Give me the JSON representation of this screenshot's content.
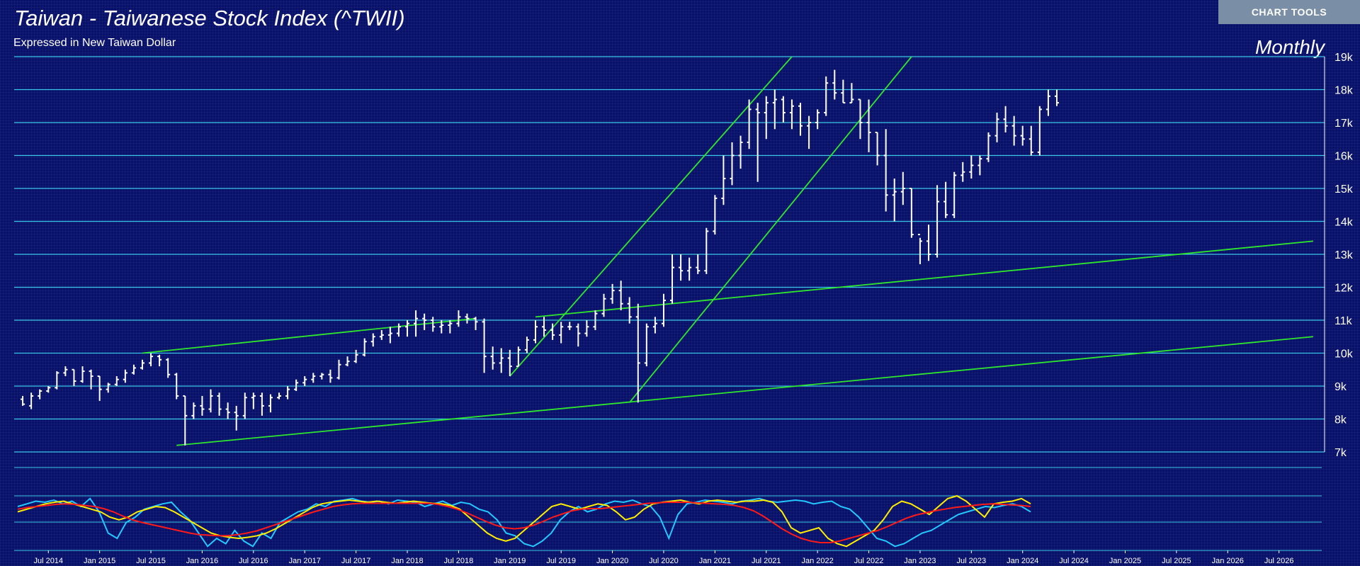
{
  "header": {
    "title": "Taiwan - Taiwanese Stock Index (^TWII)",
    "subtitle": "Expressed in New Taiwan Dollar",
    "period": "Monthly",
    "chart_tools_label": "CHART TOOLS"
  },
  "colors": {
    "background": "#07106a",
    "price_bars": "#ffffff",
    "trendlines": "#2ee62e",
    "gridlines": "#39c6e6",
    "osc_cyan": "#24c8ff",
    "osc_yellow": "#ffee00",
    "osc_red": "#ff1a1a"
  },
  "chart_data": {
    "type": "ohlc",
    "period": "monthly",
    "y_axis": {
      "range": [
        7000,
        19000
      ],
      "ticks": [
        "7k",
        "8k",
        "9k",
        "10k",
        "11k",
        "12k",
        "13k",
        "14k",
        "15k",
        "16k",
        "17k",
        "18k",
        "19k"
      ]
    },
    "x_axis": {
      "range": [
        "2014-03",
        "2026-12"
      ],
      "tick_labels": [
        "Jul 2014",
        "Jan 2015",
        "Jul 2015",
        "Jan 2016",
        "Jul 2016",
        "Jan 2017",
        "Jul 2017",
        "Jan 2018",
        "Jul 2018",
        "Jan 2019",
        "Jul 2019",
        "Jan 2020",
        "Jul 2020",
        "Jan 2021",
        "Jul 2021",
        "Jan 2022",
        "Jul 2022",
        "Jan 2023",
        "Jul 2023",
        "Jan 2024",
        "Jul 2024",
        "Jan 2025",
        "Jul 2025",
        "Jan 2026",
        "Jul 2026"
      ]
    },
    "bars": [
      [
        "2014-04",
        8600,
        8700,
        8400,
        8450
      ],
      [
        "2014-05",
        8400,
        8800,
        8300,
        8700
      ],
      [
        "2014-06",
        8700,
        8900,
        8600,
        8850
      ],
      [
        "2014-07",
        8850,
        9000,
        8800,
        8950
      ],
      [
        "2014-08",
        8950,
        9450,
        8900,
        9400
      ],
      [
        "2014-09",
        9400,
        9600,
        9300,
        9500
      ],
      [
        "2014-10",
        9500,
        9500,
        9000,
        9150
      ],
      [
        "2014-11",
        9150,
        9600,
        9100,
        9450
      ],
      [
        "2014-12",
        9450,
        9500,
        8900,
        9300
      ],
      [
        "2014-13",
        9300,
        9300,
        8550,
        8900
      ],
      [
        "2015-02",
        8900,
        9100,
        8800,
        9050
      ],
      [
        "2015-03",
        9050,
        9300,
        9000,
        9200
      ],
      [
        "2015-04",
        9200,
        9500,
        9100,
        9400
      ],
      [
        "2015-05",
        9400,
        9650,
        9350,
        9550
      ],
      [
        "2015-06",
        9550,
        9800,
        9500,
        9700
      ],
      [
        "2015-07",
        9700,
        10000,
        9600,
        9900
      ],
      [
        "2015-08",
        9900,
        9950,
        9600,
        9800
      ],
      [
        "2015-09",
        9800,
        9850,
        9250,
        9350
      ],
      [
        "2015-10",
        9350,
        9400,
        8600,
        8700
      ],
      [
        "2015-11",
        8700,
        8700,
        7200,
        8100
      ],
      [
        "2015-12",
        8100,
        8500,
        8000,
        8400
      ],
      [
        "2015-13",
        8400,
        8700,
        8100,
        8300
      ],
      [
        "2016-02",
        8300,
        8900,
        8200,
        8700
      ],
      [
        "2016-03",
        8700,
        8800,
        8100,
        8300
      ],
      [
        "2016-04",
        8300,
        8500,
        8000,
        8200
      ],
      [
        "2016-05",
        8200,
        8400,
        7650,
        8100
      ],
      [
        "2016-06",
        8100,
        8800,
        8000,
        8650
      ],
      [
        "2016-07",
        8650,
        8800,
        8300,
        8700
      ],
      [
        "2016-08",
        8700,
        8800,
        8100,
        8400
      ],
      [
        "2016-09",
        8400,
        8750,
        8200,
        8650
      ],
      [
        "2016-10",
        8650,
        8800,
        8600,
        8700
      ],
      [
        "2016-11",
        8700,
        9000,
        8600,
        8900
      ],
      [
        "2016-12",
        8900,
        9200,
        8850,
        9100
      ],
      [
        "2016-13",
        9100,
        9300,
        9000,
        9200
      ],
      [
        "2017-02",
        9200,
        9400,
        9100,
        9300
      ],
      [
        "2017-03",
        9300,
        9400,
        9200,
        9350
      ],
      [
        "2017-04",
        9350,
        9500,
        9100,
        9250
      ],
      [
        "2017-05",
        9250,
        9800,
        9200,
        9650
      ],
      [
        "2017-06",
        9650,
        9900,
        9600,
        9750
      ],
      [
        "2017-07",
        9750,
        10100,
        9700,
        9950
      ],
      [
        "2017-08",
        9950,
        10450,
        9900,
        10350
      ],
      [
        "2017-09",
        10350,
        10600,
        10200,
        10500
      ],
      [
        "2017-10",
        10500,
        10700,
        10400,
        10550
      ],
      [
        "2017-11",
        10550,
        10800,
        10300,
        10600
      ],
      [
        "2017-12",
        10600,
        10900,
        10500,
        10800
      ],
      [
        "2017-13",
        10800,
        11000,
        10500,
        10900
      ],
      [
        "2018-02",
        10900,
        11300,
        10500,
        11050
      ],
      [
        "2018-03",
        11050,
        11200,
        10700,
        11000
      ],
      [
        "2018-04",
        11000,
        11100,
        10650,
        10800
      ],
      [
        "2018-05",
        10800,
        11000,
        10600,
        10850
      ],
      [
        "2018-06",
        10850,
        11000,
        10600,
        10900
      ],
      [
        "2018-07",
        10900,
        11300,
        10800,
        11100
      ],
      [
        "2018-08",
        11100,
        11200,
        10900,
        11050
      ],
      [
        "2018-09",
        11050,
        11100,
        10700,
        10950
      ],
      [
        "2018-10",
        10950,
        11050,
        9400,
        9900
      ],
      [
        "2018-11",
        9900,
        10200,
        9500,
        9700
      ],
      [
        "2018-12",
        9700,
        10150,
        9400,
        9850
      ],
      [
        "2018-13",
        9850,
        10100,
        9300,
        9600
      ],
      [
        "2019-02",
        9600,
        10200,
        9600,
        10100
      ],
      [
        "2019-03",
        10100,
        10500,
        10000,
        10400
      ],
      [
        "2019-04",
        10400,
        11000,
        10300,
        10800
      ],
      [
        "2019-05",
        10800,
        11100,
        10500,
        10700
      ],
      [
        "2019-06",
        10700,
        10900,
        10400,
        10550
      ],
      [
        "2019-07",
        10550,
        10950,
        10300,
        10800
      ],
      [
        "2019-08",
        10800,
        10950,
        10700,
        10800
      ],
      [
        "2019-09",
        10800,
        10900,
        10200,
        10600
      ],
      [
        "2019-10",
        10600,
        11000,
        10500,
        10800
      ],
      [
        "2019-11",
        10800,
        11300,
        10700,
        11200
      ],
      [
        "2019-12",
        11200,
        11800,
        11100,
        11650
      ],
      [
        "2019-13",
        11650,
        12100,
        11500,
        11900
      ],
      [
        "2020-02",
        11900,
        12200,
        11300,
        11500
      ],
      [
        "2020-03",
        11500,
        11700,
        10900,
        11100
      ],
      [
        "2020-04",
        11100,
        11500,
        8500,
        9700
      ],
      [
        "2020-05",
        9700,
        10900,
        9600,
        10800
      ],
      [
        "2020-06",
        10800,
        11100,
        10600,
        10900
      ],
      [
        "2020-07",
        10900,
        11800,
        10800,
        11600
      ],
      [
        "2020-08",
        11600,
        13000,
        11500,
        12600
      ],
      [
        "2020-09",
        12600,
        13000,
        12200,
        12500
      ],
      [
        "2020-10",
        12500,
        12900,
        12200,
        12600
      ],
      [
        "2020-11",
        12600,
        13000,
        12400,
        12500
      ],
      [
        "2020-12",
        12500,
        13800,
        12400,
        13700
      ],
      [
        "2020-13",
        13700,
        14800,
        13600,
        14700
      ],
      [
        "2021-02",
        14700,
        16000,
        14500,
        15300
      ],
      [
        "2021-03",
        15300,
        16400,
        15100,
        16000
      ],
      [
        "2021-04",
        16000,
        16600,
        15600,
        16400
      ],
      [
        "2021-05",
        16400,
        17700,
        16200,
        17400
      ],
      [
        "2021-06",
        17400,
        17600,
        15200,
        17300
      ],
      [
        "2021-07",
        17300,
        17800,
        16500,
        17600
      ],
      [
        "2021-08",
        17600,
        18000,
        16800,
        17700
      ],
      [
        "2021-09",
        17700,
        17800,
        17000,
        17300
      ],
      [
        "2021-10",
        17300,
        17700,
        16800,
        17500
      ],
      [
        "2021-11",
        17500,
        17600,
        16600,
        16900
      ],
      [
        "2021-12",
        16900,
        17200,
        16200,
        17000
      ],
      [
        "2021-13",
        17000,
        17400,
        16800,
        17300
      ],
      [
        "2022-02",
        17300,
        18400,
        17200,
        18200
      ],
      [
        "2022-03",
        18200,
        18600,
        17700,
        17900
      ],
      [
        "2022-04",
        17900,
        18300,
        17600,
        17600
      ],
      [
        "2022-05",
        17600,
        18200,
        17600,
        17700
      ],
      [
        "2022-06",
        17700,
        17700,
        16500,
        17000
      ],
      [
        "2022-07",
        17000,
        17700,
        16100,
        16700
      ],
      [
        "2022-08",
        16700,
        16700,
        15700,
        16000
      ],
      [
        "2022-09",
        16000,
        16800,
        14300,
        14800
      ],
      [
        "2022-10",
        14800,
        15300,
        14000,
        14900
      ],
      [
        "2022-11",
        14900,
        15500,
        14500,
        15000
      ],
      [
        "2022-12",
        15000,
        15000,
        13500,
        13600
      ],
      [
        "2022-13",
        13600,
        13500,
        12700,
        13400
      ],
      [
        "2023-02",
        13400,
        13900,
        12800,
        13000
      ],
      [
        "2023-03",
        13000,
        15100,
        12900,
        14600
      ],
      [
        "2023-04",
        14600,
        15200,
        14100,
        14200
      ],
      [
        "2023-05",
        14200,
        15500,
        14100,
        15400
      ],
      [
        "2023-06",
        15400,
        15800,
        15200,
        15500
      ],
      [
        "2023-07",
        15500,
        16000,
        15300,
        15700
      ],
      [
        "2023-08",
        15700,
        16000,
        15400,
        15900
      ],
      [
        "2023-09",
        15900,
        16700,
        15800,
        16600
      ],
      [
        "2023-10",
        16600,
        17300,
        16400,
        17100
      ],
      [
        "2023-11",
        17100,
        17500,
        16700,
        16900
      ],
      [
        "2023-12",
        16900,
        17200,
        16300,
        16600
      ],
      [
        "2023-13",
        16600,
        16900,
        16300,
        16500
      ],
      [
        "2024-02",
        16500,
        16900,
        16000,
        16100
      ],
      [
        "2024-03",
        16100,
        17500,
        16000,
        17400
      ],
      [
        "2024-04",
        17400,
        18000,
        17200,
        17800
      ],
      [
        "2024-05",
        17800,
        18000,
        17500,
        17600
      ]
    ],
    "trendlines": [
      {
        "from": [
          "2015-06",
          10000
        ],
        "to": [
          "2018-09",
          11050
        ]
      },
      {
        "from": [
          "2015-10",
          7200
        ],
        "to": [
          "2026-11",
          10500
        ]
      },
      {
        "from": [
          "2019-01",
          9300
        ],
        "to": [
          "2021-10",
          19000
        ]
      },
      {
        "from": [
          "2020-03",
          8500
        ],
        "to": [
          "2022-12",
          19000
        ]
      },
      {
        "from": [
          "2019-04",
          11100
        ],
        "to": [
          "2026-11",
          13400
        ]
      }
    ],
    "oscillator": {
      "lines": [
        {
          "name": "cyan",
          "values": [
            0.8,
            0.85,
            0.9,
            0.88,
            0.92,
            0.85,
            0.9,
            0.8,
            0.95,
            0.7,
            0.3,
            0.2,
            0.5,
            0.6,
            0.75,
            0.8,
            0.85,
            0.88,
            0.7,
            0.55,
            0.3,
            0.05,
            0.2,
            0.1,
            0.35,
            0.15,
            0.05,
            0.3,
            0.2,
            0.5,
            0.6,
            0.7,
            0.75,
            0.85,
            0.8,
            0.9,
            0.92,
            0.95,
            0.9,
            0.88,
            0.9,
            0.85,
            0.92,
            0.9,
            0.88,
            0.8,
            0.85,
            0.9,
            0.82,
            0.88,
            0.85,
            0.75,
            0.7,
            0.55,
            0.3,
            0.25,
            0.1,
            0.05,
            0.15,
            0.3,
            0.55,
            0.7,
            0.8,
            0.7,
            0.75,
            0.85,
            0.9,
            0.88,
            0.92,
            0.85,
            0.8,
            0.6,
            0.2,
            0.65,
            0.85,
            0.88,
            0.92,
            0.9,
            0.88,
            0.85,
            0.9,
            0.92,
            0.95,
            0.9,
            0.88,
            0.9,
            0.92,
            0.9,
            0.85,
            0.88,
            0.9,
            0.8,
            0.75,
            0.6,
            0.4,
            0.2,
            0.15,
            0.05,
            0.1,
            0.2,
            0.3,
            0.35,
            0.45,
            0.55,
            0.65,
            0.7,
            0.75,
            0.8,
            0.78,
            0.82,
            0.85,
            0.8,
            0.7
          ]
        },
        {
          "name": "yellow",
          "values": [
            0.7,
            0.75,
            0.8,
            0.85,
            0.88,
            0.9,
            0.85,
            0.8,
            0.75,
            0.7,
            0.6,
            0.55,
            0.6,
            0.7,
            0.75,
            0.8,
            0.78,
            0.7,
            0.6,
            0.5,
            0.4,
            0.3,
            0.25,
            0.22,
            0.2,
            0.22,
            0.25,
            0.3,
            0.38,
            0.48,
            0.58,
            0.68,
            0.78,
            0.85,
            0.88,
            0.9,
            0.92,
            0.9,
            0.88,
            0.9,
            0.88,
            0.86,
            0.88,
            0.9,
            0.88,
            0.86,
            0.85,
            0.82,
            0.75,
            0.6,
            0.45,
            0.3,
            0.2,
            0.15,
            0.2,
            0.35,
            0.5,
            0.65,
            0.8,
            0.85,
            0.8,
            0.75,
            0.8,
            0.85,
            0.82,
            0.7,
            0.55,
            0.6,
            0.75,
            0.85,
            0.88,
            0.9,
            0.92,
            0.88,
            0.85,
            0.9,
            0.92,
            0.9,
            0.88,
            0.9,
            0.9,
            0.92,
            0.88,
            0.7,
            0.4,
            0.3,
            0.35,
            0.4,
            0.2,
            0.1,
            0.05,
            0.15,
            0.25,
            0.35,
            0.55,
            0.8,
            0.9,
            0.85,
            0.75,
            0.65,
            0.8,
            0.95,
            1.0,
            0.9,
            0.75,
            0.6,
            0.85,
            0.88,
            0.9,
            0.95,
            0.85
          ]
        },
        {
          "name": "red",
          "values": [
            0.75,
            0.78,
            0.8,
            0.82,
            0.84,
            0.85,
            0.84,
            0.82,
            0.8,
            0.76,
            0.7,
            0.62,
            0.55,
            0.5,
            0.46,
            0.42,
            0.38,
            0.34,
            0.3,
            0.27,
            0.26,
            0.25,
            0.25,
            0.27,
            0.3,
            0.34,
            0.4,
            0.46,
            0.52,
            0.58,
            0.64,
            0.7,
            0.75,
            0.8,
            0.83,
            0.85,
            0.86,
            0.86,
            0.86,
            0.86,
            0.86,
            0.86,
            0.86,
            0.86,
            0.84,
            0.8,
            0.75,
            0.68,
            0.6,
            0.52,
            0.45,
            0.4,
            0.38,
            0.4,
            0.45,
            0.52,
            0.6,
            0.66,
            0.72,
            0.75,
            0.76,
            0.76,
            0.78,
            0.8,
            0.82,
            0.84,
            0.86,
            0.87,
            0.88,
            0.88,
            0.88,
            0.87,
            0.86,
            0.85,
            0.84,
            0.82,
            0.78,
            0.72,
            0.62,
            0.5,
            0.38,
            0.28,
            0.2,
            0.15,
            0.12,
            0.12,
            0.15,
            0.2,
            0.25,
            0.3,
            0.35,
            0.42,
            0.5,
            0.58,
            0.64,
            0.68,
            0.72,
            0.75,
            0.78,
            0.8,
            0.82,
            0.84,
            0.85,
            0.84,
            0.83,
            0.82,
            0.8
          ]
        }
      ]
    }
  }
}
